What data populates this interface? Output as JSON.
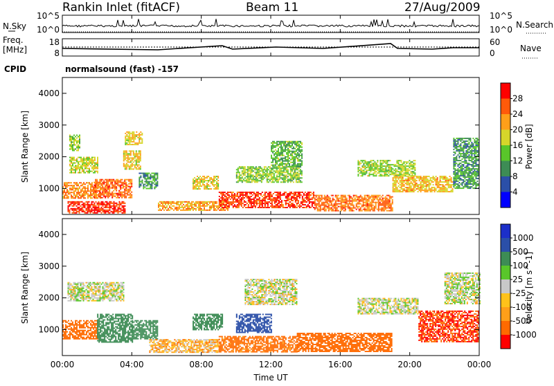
{
  "header": {
    "station": "Rankin Inlet (fitACF)",
    "beam": "Beam 11",
    "date": "27/Aug/2009"
  },
  "noise_panel": {
    "left_label": "N.Sky",
    "left_ticks": [
      "10^5",
      "10^0"
    ],
    "right_ticks": [
      "10^5",
      "10^0"
    ],
    "right_label": "N.Search"
  },
  "freq_panel": {
    "left_label_1": "Freq.",
    "left_label_2": "[MHz]",
    "left_ticks": [
      "18",
      "8"
    ],
    "right_ticks": [
      "60",
      "0"
    ],
    "right_label": "Nave"
  },
  "cpid": {
    "label": "CPID",
    "program": "normalsound (fast) -157"
  },
  "colors": {
    "power_scale": [
      "#0000ff",
      "#2b4fa8",
      "#3d8c55",
      "#59c62a",
      "#d6d62a",
      "#ff9f19",
      "#ff5a0a",
      "#ff0000"
    ],
    "velocity_scale": [
      "#ff0000",
      "#ff6a00",
      "#ff9f19",
      "#ffc21a",
      "#c8c8c8",
      "#59c62a",
      "#3d8c55",
      "#2b4fa8",
      "#1c2fc9"
    ]
  },
  "chart_data": [
    {
      "type": "heatmap",
      "name": "power",
      "xlabel": "",
      "ylabel": "Slant Range [km]",
      "ylim": [
        180,
        4500
      ],
      "xlim": [
        "00:00",
        "24:00"
      ],
      "x_ticks": [
        "00:00",
        "04:00",
        "08:00",
        "12:00",
        "16:00",
        "20:00",
        "00:00"
      ],
      "y_ticks": [
        1000,
        2000,
        3000,
        4000
      ],
      "colorbar": {
        "label": "Power [dB]",
        "ticks": [
          4,
          8,
          12,
          16,
          20,
          24,
          28
        ],
        "range": [
          0,
          30
        ]
      },
      "regions": [
        {
          "start_hour": 0.0,
          "end_hour": 2.2,
          "range_km": [
            700,
            1200
          ],
          "value": 22
        },
        {
          "start_hour": 0.3,
          "end_hour": 3.6,
          "range_km": [
            250,
            600
          ],
          "value": 27
        },
        {
          "start_hour": 0.4,
          "end_hour": 2.0,
          "range_km": [
            1500,
            2000
          ],
          "value": 16
        },
        {
          "start_hour": 0.4,
          "end_hour": 1.0,
          "range_km": [
            2200,
            2700
          ],
          "value": 14
        },
        {
          "start_hour": 1.8,
          "end_hour": 4.0,
          "range_km": [
            700,
            1300
          ],
          "value": 24
        },
        {
          "start_hour": 3.5,
          "end_hour": 4.5,
          "range_km": [
            1600,
            2200
          ],
          "value": 18
        },
        {
          "start_hour": 3.6,
          "end_hour": 4.6,
          "range_km": [
            2400,
            2800
          ],
          "value": 18
        },
        {
          "start_hour": 4.4,
          "end_hour": 5.5,
          "range_km": [
            1000,
            1500
          ],
          "value": 10
        },
        {
          "start_hour": 5.5,
          "end_hour": 9.5,
          "range_km": [
            300,
            600
          ],
          "value": 21
        },
        {
          "start_hour": 7.5,
          "end_hour": 9.0,
          "range_km": [
            1000,
            1400
          ],
          "value": 18
        },
        {
          "start_hour": 9.0,
          "end_hour": 14.5,
          "range_km": [
            400,
            900
          ],
          "value": 26
        },
        {
          "start_hour": 10.0,
          "end_hour": 13.8,
          "range_km": [
            1200,
            1700
          ],
          "value": 14
        },
        {
          "start_hour": 12.0,
          "end_hour": 13.8,
          "range_km": [
            1700,
            2500
          ],
          "value": 12
        },
        {
          "start_hour": 14.5,
          "end_hour": 19.0,
          "range_km": [
            300,
            800
          ],
          "value": 23
        },
        {
          "start_hour": 17.0,
          "end_hour": 20.3,
          "range_km": [
            1400,
            1900
          ],
          "value": 15
        },
        {
          "start_hour": 19.0,
          "end_hour": 22.5,
          "range_km": [
            900,
            1400
          ],
          "value": 19
        },
        {
          "start_hour": 22.5,
          "end_hour": 24.0,
          "range_km": [
            1000,
            2600
          ],
          "value": 10
        }
      ]
    },
    {
      "type": "heatmap",
      "name": "velocity",
      "xlabel": "Time UT",
      "ylabel": "Slant Range [km]",
      "ylim": [
        180,
        4500
      ],
      "xlim": [
        "00:00",
        "24:00"
      ],
      "x_ticks": [
        "00:00",
        "04:00",
        "08:00",
        "12:00",
        "16:00",
        "20:00",
        "00:00"
      ],
      "y_ticks": [
        1000,
        2000,
        3000,
        4000
      ],
      "colorbar": {
        "label": "Velocity [m s^-1]",
        "ticks": [
          "1000",
          "500",
          "100",
          "25",
          "-25",
          "-100",
          "-500",
          "-1000"
        ]
      },
      "regions": [
        {
          "start_hour": 0.0,
          "end_hour": 2.0,
          "range_km": [
            700,
            1300
          ],
          "value": -300
        },
        {
          "start_hour": 0.3,
          "end_hour": 3.5,
          "range_km": [
            1900,
            2500
          ],
          "value": 0
        },
        {
          "start_hour": 2.0,
          "end_hour": 4.0,
          "range_km": [
            600,
            1500
          ],
          "value": 300
        },
        {
          "start_hour": 4.0,
          "end_hour": 5.5,
          "range_km": [
            700,
            1300
          ],
          "value": 300
        },
        {
          "start_hour": 5.0,
          "end_hour": 9.0,
          "range_km": [
            300,
            700
          ],
          "value": -60
        },
        {
          "start_hour": 7.5,
          "end_hour": 9.2,
          "range_km": [
            1000,
            1500
          ],
          "value": 400
        },
        {
          "start_hour": 9.0,
          "end_hour": 13.5,
          "range_km": [
            300,
            800
          ],
          "value": -150
        },
        {
          "start_hour": 10.0,
          "end_hour": 12.0,
          "range_km": [
            900,
            1500
          ],
          "value": 600
        },
        {
          "start_hour": 10.5,
          "end_hour": 13.5,
          "range_km": [
            1800,
            2600
          ],
          "value": 0
        },
        {
          "start_hour": 13.5,
          "end_hour": 19.0,
          "range_km": [
            300,
            900
          ],
          "value": -300
        },
        {
          "start_hour": 17.0,
          "end_hour": 20.5,
          "range_km": [
            1500,
            2000
          ],
          "value": 0
        },
        {
          "start_hour": 20.5,
          "end_hour": 24.0,
          "range_km": [
            600,
            1600
          ],
          "value": -500
        },
        {
          "start_hour": 22.0,
          "end_hour": 24.0,
          "range_km": [
            1800,
            2800
          ],
          "value": 0
        }
      ]
    }
  ],
  "xlabel": "Time UT"
}
